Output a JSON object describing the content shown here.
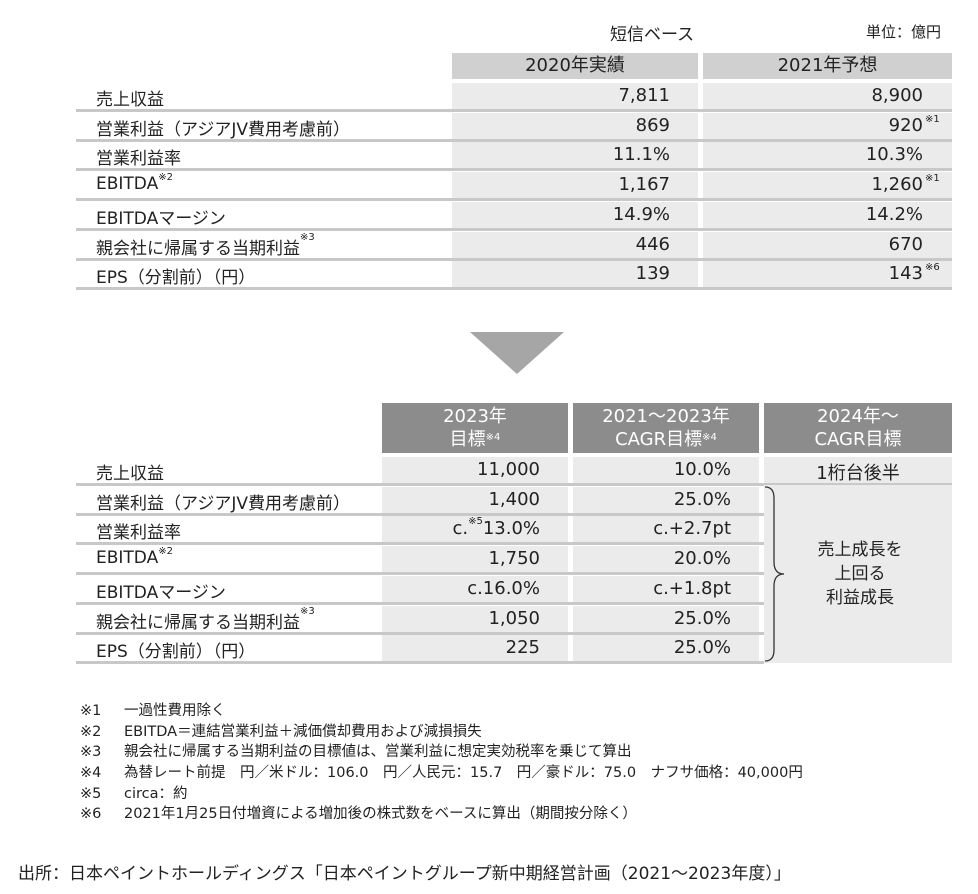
{
  "top": {
    "basis_label": "短信ベース",
    "unit_label": "単位：億円",
    "headers": [
      "2020年実績",
      "2021年予想"
    ],
    "rows": [
      {
        "label": "売上収益",
        "label_note": "",
        "v1": "7,811",
        "v1_note": "",
        "v2": "8,900",
        "v2_note": ""
      },
      {
        "label": "営業利益（アジアJV費用考慮前）",
        "label_note": "",
        "v1": "869",
        "v1_note": "",
        "v2": "920",
        "v2_note": "※1"
      },
      {
        "label": "営業利益率",
        "label_note": "",
        "v1": "11.1%",
        "v1_note": "",
        "v2": "10.3%",
        "v2_note": ""
      },
      {
        "label": "EBITDA",
        "label_note": "※2",
        "v1": "1,167",
        "v1_note": "",
        "v2": "1,260",
        "v2_note": "※1"
      },
      {
        "label": "EBITDAマージン",
        "label_note": "",
        "v1": "14.9%",
        "v1_note": "",
        "v2": "14.2%",
        "v2_note": ""
      },
      {
        "label": "親会社に帰属する当期利益",
        "label_note": "※3",
        "v1": "446",
        "v1_note": "",
        "v2": "670",
        "v2_note": ""
      },
      {
        "label": "EPS（分割前）（円）",
        "label_note": "",
        "v1": "139",
        "v1_note": "",
        "v2": "143",
        "v2_note": "※6"
      }
    ]
  },
  "bottom": {
    "headers": [
      {
        "line1": "2023年",
        "line2": "目標",
        "note": "※4"
      },
      {
        "line1": "2021～2023年",
        "line2": "CAGR目標",
        "note": "※4"
      },
      {
        "line1": "2024年～",
        "line2": "CAGR目標",
        "note": ""
      }
    ],
    "rows": [
      {
        "label": "売上収益",
        "label_note": "",
        "v1_prefix": "",
        "v1_prefix_note": "",
        "v1": "11,000",
        "v2": "10.0%"
      },
      {
        "label": "営業利益（アジアJV費用考慮前）",
        "label_note": "",
        "v1_prefix": "",
        "v1_prefix_note": "",
        "v1": "1,400",
        "v2": "25.0%"
      },
      {
        "label": "営業利益率",
        "label_note": "",
        "v1_prefix": "c.",
        "v1_prefix_note": "※5",
        "v1": "13.0%",
        "v2": "c.+2.7pt"
      },
      {
        "label": "EBITDA",
        "label_note": "※2",
        "v1_prefix": "",
        "v1_prefix_note": "",
        "v1": "1,750",
        "v2": "20.0%"
      },
      {
        "label": "EBITDAマージン",
        "label_note": "",
        "v1_prefix": "",
        "v1_prefix_note": "",
        "v1": "c.16.0%",
        "v2": "c.+1.8pt"
      },
      {
        "label": "親会社に帰属する当期利益",
        "label_note": "※3",
        "v1_prefix": "",
        "v1_prefix_note": "",
        "v1": "1,050",
        "v2": "25.0%"
      },
      {
        "label": "EPS（分割前）（円）",
        "label_note": "",
        "v1_prefix": "",
        "v1_prefix_note": "",
        "v1": "225",
        "v2": "25.0%"
      }
    ],
    "col3_first": "1桁台後半",
    "col3_bracket_lines": [
      "売上成長を",
      "上回る",
      "利益成長"
    ]
  },
  "notes": [
    {
      "mark": "※1",
      "text": "一過性費用除く"
    },
    {
      "mark": "※2",
      "text": "EBITDA＝連結営業利益＋減価償却費用および減損損失"
    },
    {
      "mark": "※3",
      "text": "親会社に帰属する当期利益の目標値は、営業利益に想定実効税率を乗じて算出"
    },
    {
      "mark": "※4",
      "text": "為替レート前提　円／米ドル：106.0　円／人民元：15.7　円／豪ドル：75.0　ナフサ価格：40,000円"
    },
    {
      "mark": "※5",
      "text": "circa：約"
    },
    {
      "mark": "※6",
      "text": "2021年1月25日付増資による増加後の株式数をベースに算出（期間按分除く）"
    }
  ],
  "source": "出所：日本ペイントホールディングス「日本ペイントグループ新中期経営計画（2021～2023年度）」"
}
